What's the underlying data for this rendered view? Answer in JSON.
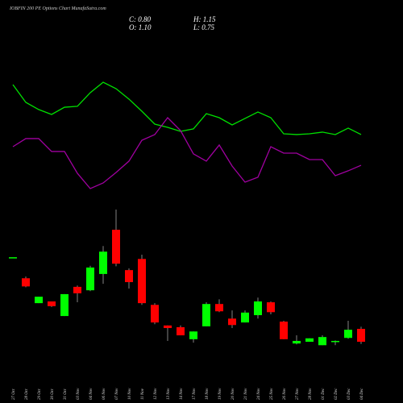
{
  "chart_data": {
    "type": "candlestick",
    "title": "IOBFIN 200 PE Options Chart MunafaSutra.com",
    "header": {
      "close": "C: 0.80",
      "high": "H: 1.15",
      "open": "O: 1.10",
      "low": "L: 0.75"
    },
    "categories": [
      "27 Oct",
      "28 Oct",
      "29 Oct",
      "30 Oct",
      "31 Oct",
      "03 Nov",
      "04 Nov",
      "06 Nov",
      "07 Nov",
      "10 Nov",
      "11 Nov",
      "12 Nov",
      "13 Nov",
      "14 Nov",
      "17 Nov",
      "18 Nov",
      "19 Nov",
      "20 Nov",
      "21 Nov",
      "24 Nov",
      "25 Nov",
      "26 Nov",
      "27 Nov",
      "28 Nov",
      "01 Dec",
      "02 Dec",
      "03 Dec",
      "04 Dec"
    ],
    "open": [
      2.77,
      2.28,
      1.7,
      1.74,
      1.4,
      2.08,
      2.0,
      2.38,
      3.41,
      2.47,
      2.73,
      1.66,
      1.18,
      1.14,
      0.86,
      1.16,
      1.68,
      1.34,
      1.25,
      1.42,
      1.72,
      1.27,
      0.76,
      0.8,
      0.72,
      0.81,
      0.89,
      1.1
    ],
    "high": [
      2.77,
      2.32,
      1.85,
      1.74,
      1.91,
      2.11,
      2.57,
      3.03,
      3.88,
      2.51,
      2.83,
      1.7,
      1.18,
      1.18,
      1.04,
      1.72,
      1.79,
      1.53,
      1.53,
      1.83,
      1.74,
      1.29,
      0.95,
      0.88,
      0.95,
      0.83,
      1.29,
      1.15
    ],
    "low": [
      2.77,
      2.07,
      1.7,
      1.61,
      1.4,
      1.72,
      1.98,
      2.15,
      2.56,
      2.04,
      1.66,
      1.21,
      0.82,
      0.95,
      0.78,
      1.16,
      1.49,
      1.12,
      1.25,
      1.34,
      1.44,
      0.86,
      0.74,
      0.8,
      0.72,
      0.72,
      0.87,
      0.75
    ],
    "close": [
      2.77,
      2.09,
      1.85,
      1.63,
      1.91,
      1.93,
      2.53,
      2.9,
      2.62,
      2.19,
      1.7,
      1.25,
      1.12,
      0.95,
      1.04,
      1.68,
      1.51,
      1.19,
      1.48,
      1.74,
      1.49,
      0.86,
      0.82,
      0.88,
      0.91,
      0.82,
      1.08,
      0.8
    ],
    "up_color": "#00ff00",
    "down_color": "#ff0000",
    "ylim": [
      0.5,
      4.05
    ],
    "indicators": {
      "ylim": [
        0,
        100
      ],
      "series": [
        {
          "color": "#00e000",
          "values": [
            90.6,
            76.9,
            71.3,
            67.5,
            73.1,
            73.8,
            84.4,
            92.5,
            87.5,
            79.4,
            70,
            60,
            57.5,
            54.4,
            56.3,
            68.1,
            65,
            59.4,
            64.4,
            69.4,
            65,
            52.5,
            51.9,
            52.5,
            53.8,
            51.9,
            56.9,
            51.9
          ]
        },
        {
          "color": "#a000a0",
          "values": [
            42.5,
            48.8,
            48.8,
            38.8,
            38.8,
            21.9,
            10,
            14.4,
            22.5,
            31.3,
            47.5,
            51.9,
            65,
            55,
            36.9,
            31.3,
            43.8,
            27.5,
            15,
            18.8,
            42.5,
            37.5,
            37.5,
            32.5,
            32.5,
            20,
            23.8,
            28.1
          ]
        }
      ]
    }
  }
}
